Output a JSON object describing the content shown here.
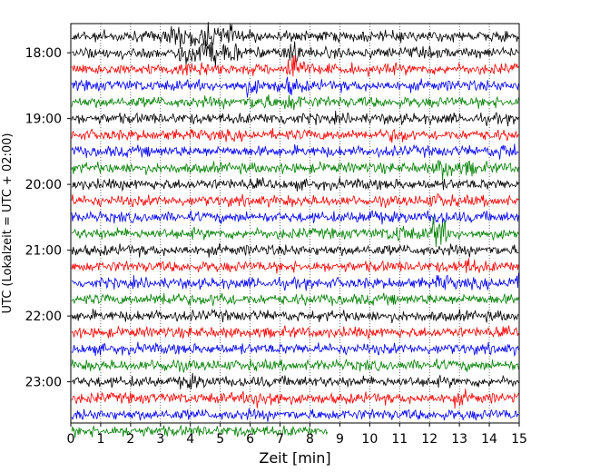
{
  "chart_data": {
    "type": "line",
    "subtype": "helicorder",
    "xlabel": "Zeit  [min]",
    "ylabel": "UTC (Lokalzeit = UTC + 02:00)",
    "xlim": [
      0,
      15
    ],
    "x_ticks": [
      "0",
      "1",
      "2",
      "3",
      "4",
      "5",
      "6",
      "7",
      "8",
      "9",
      "10",
      "11",
      "12",
      "13",
      "14",
      "15"
    ],
    "y_ticks": [
      "18:00",
      "19:00",
      "20:00",
      "21:00",
      "22:00",
      "23:00"
    ],
    "grid": "vertical dotted",
    "line_colors": [
      "#000000",
      "#ff0000",
      "#0000ff",
      "#008000"
    ],
    "series": [
      {
        "values": [
          17.75,
          17.75,
          17.75,
          17.75,
          17.75,
          17.75,
          17.75,
          17.75,
          17.75,
          17.75,
          17.75,
          17.75,
          17.75,
          17.75,
          17.75,
          17.75
        ]
      },
      {
        "values": [
          18.25,
          18.25,
          18.25,
          18.25,
          18.25,
          18.25,
          18.25,
          18.25,
          18.25,
          18.25,
          18.25,
          18.25,
          18.25,
          18.25,
          18.25,
          18.25
        ]
      }
    ],
    "traces": [
      {
        "start": "17:45",
        "color": "#000000",
        "end_min": 15,
        "events": [
          {
            "t": 3.6,
            "amp": 1.6
          },
          {
            "t": 4.4,
            "amp": 1.5
          },
          {
            "t": 5.2,
            "amp": 1.4
          }
        ]
      },
      {
        "start": "18:00",
        "color": "#000000",
        "end_min": 15,
        "events": [
          {
            "t": 3.9,
            "amp": 1.5
          },
          {
            "t": 4.6,
            "amp": 1.5
          },
          {
            "t": 5.3,
            "amp": 1.3
          },
          {
            "t": 7.5,
            "amp": 2.2
          }
        ]
      },
      {
        "start": "18:15",
        "color": "#ff0000",
        "end_min": 15,
        "events": [
          {
            "t": 4.2,
            "amp": 1.0
          },
          {
            "t": 7.5,
            "amp": 3.5
          }
        ]
      },
      {
        "start": "18:30",
        "color": "#0000ff",
        "end_min": 15,
        "events": [
          {
            "t": 6.0,
            "amp": 0.9
          },
          {
            "t": 7.3,
            "amp": 0.9
          }
        ]
      },
      {
        "start": "18:45",
        "color": "#008000",
        "end_min": 15,
        "events": [
          {
            "t": 6.3,
            "amp": 0.8
          },
          {
            "t": 7.4,
            "amp": 0.9
          }
        ]
      },
      {
        "start": "19:00",
        "color": "#000000",
        "end_min": 15,
        "events": [
          {
            "t": 7.0,
            "amp": 0.5
          }
        ]
      },
      {
        "start": "19:15",
        "color": "#ff0000",
        "end_min": 15,
        "events": [
          {
            "t": 11.0,
            "amp": 0.5
          }
        ]
      },
      {
        "start": "19:30",
        "color": "#0000ff",
        "end_min": 15,
        "events": [
          {
            "t": 14.6,
            "amp": 0.9
          }
        ]
      },
      {
        "start": "19:45",
        "color": "#008000",
        "end_min": 15,
        "events": [
          {
            "t": 12.5,
            "amp": 2.0
          },
          {
            "t": 13.3,
            "amp": 0.6
          }
        ]
      },
      {
        "start": "20:00",
        "color": "#000000",
        "end_min": 15,
        "events": []
      },
      {
        "start": "20:15",
        "color": "#ff0000",
        "end_min": 15,
        "events": [
          {
            "t": 12.3,
            "amp": 0.5
          }
        ]
      },
      {
        "start": "20:30",
        "color": "#0000ff",
        "end_min": 15,
        "events": [
          {
            "t": 10.0,
            "amp": 0.6
          },
          {
            "t": 12.3,
            "amp": 0.6
          }
        ]
      },
      {
        "start": "20:45",
        "color": "#008000",
        "end_min": 15,
        "events": [
          {
            "t": 11.0,
            "amp": 0.9
          },
          {
            "t": 12.3,
            "amp": 3.0
          }
        ]
      },
      {
        "start": "21:00",
        "color": "#000000",
        "end_min": 15,
        "events": []
      },
      {
        "start": "21:15",
        "color": "#ff0000",
        "end_min": 15,
        "events": [
          {
            "t": 13.3,
            "amp": 0.7
          }
        ]
      },
      {
        "start": "21:30",
        "color": "#0000ff",
        "end_min": 15,
        "events": [
          {
            "t": 12.5,
            "amp": 0.6
          },
          {
            "t": 14.8,
            "amp": 0.6
          }
        ]
      },
      {
        "start": "21:45",
        "color": "#008000",
        "end_min": 15,
        "events": [
          {
            "t": 3.2,
            "amp": 0.7
          },
          {
            "t": 5.0,
            "amp": 0.6
          }
        ]
      },
      {
        "start": "22:00",
        "color": "#000000",
        "end_min": 15,
        "events": []
      },
      {
        "start": "22:15",
        "color": "#ff0000",
        "end_min": 15,
        "events": []
      },
      {
        "start": "22:30",
        "color": "#0000ff",
        "end_min": 15,
        "events": []
      },
      {
        "start": "22:45",
        "color": "#008000",
        "end_min": 15,
        "events": [
          {
            "t": 3.2,
            "amp": 0.5
          }
        ]
      },
      {
        "start": "23:00",
        "color": "#000000",
        "end_min": 15,
        "events": [
          {
            "t": 4.0,
            "amp": 0.5
          }
        ]
      },
      {
        "start": "23:15",
        "color": "#ff0000",
        "end_min": 15,
        "events": [
          {
            "t": 6.3,
            "amp": 0.9
          },
          {
            "t": 6.8,
            "amp": 0.8
          },
          {
            "t": 13.0,
            "amp": 0.5
          }
        ]
      },
      {
        "start": "23:30",
        "color": "#0000ff",
        "end_min": 15,
        "events": []
      },
      {
        "start": "23:45",
        "color": "#008000",
        "end_min": 8.6,
        "events": []
      }
    ]
  }
}
